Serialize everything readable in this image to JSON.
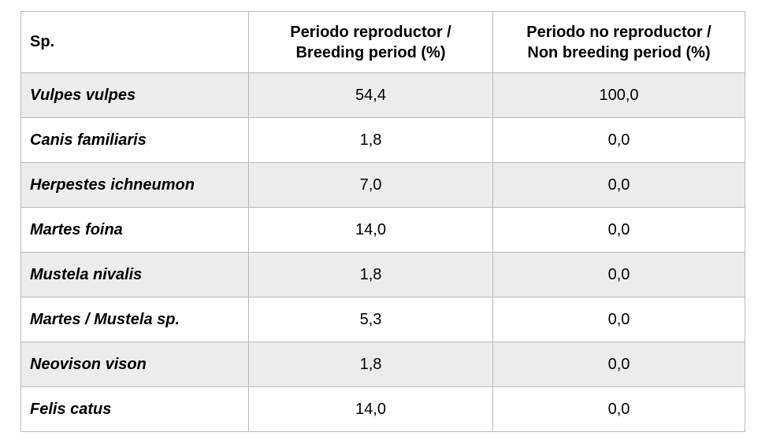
{
  "table": {
    "headers": {
      "species": "Sp.",
      "breeding": "Periodo reproductor /\nBreeding period (%)",
      "non_breeding": "Periodo no reproductor /\nNon breeding period (%)"
    },
    "rows": [
      {
        "species": "Vulpes vulpes",
        "breeding": "54,4",
        "non_breeding": "100,0"
      },
      {
        "species": "Canis familiaris",
        "breeding": "1,8",
        "non_breeding": "0,0"
      },
      {
        "species": "Herpestes ichneumon",
        "breeding": "7,0",
        "non_breeding": "0,0"
      },
      {
        "species": "Martes foina",
        "breeding": "14,0",
        "non_breeding": "0,0"
      },
      {
        "species": "Mustela nivalis",
        "breeding": "1,8",
        "non_breeding": "0,0"
      },
      {
        "species": "Martes / Mustela sp.",
        "breeding": "5,3",
        "non_breeding": "0,0"
      },
      {
        "species": "Neovison vison",
        "breeding": "1,8",
        "non_breeding": "0,0"
      },
      {
        "species": "Felis catus",
        "breeding": "14,0",
        "non_breeding": "0,0"
      }
    ],
    "colors": {
      "stripe_background": "#ececec",
      "row_background": "#ffffff",
      "border": "#b9b9b9",
      "text": "#000000",
      "page_background": "#ffffff"
    }
  }
}
